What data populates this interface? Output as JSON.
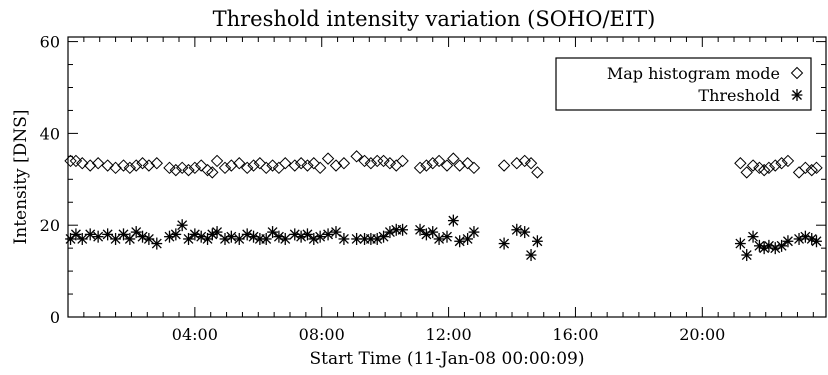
{
  "chart_data": {
    "type": "scatter",
    "title": "Threshold intensity variation (SOHO/EIT)",
    "xlabel": "Start Time (11-Jan-08 00:00:09)",
    "ylabel": "Intensity [DNS]",
    "x_unit": "hours",
    "xlim": [
      0,
      23.9
    ],
    "ylim": [
      0,
      61
    ],
    "xticks": [
      {
        "value": 4,
        "label": "04:00"
      },
      {
        "value": 8,
        "label": "08:00"
      },
      {
        "value": 12,
        "label": "12:00"
      },
      {
        "value": 16,
        "label": "16:00"
      },
      {
        "value": 20,
        "label": "20:00"
      }
    ],
    "yticks": [
      {
        "value": 0,
        "label": "0"
      },
      {
        "value": 20,
        "label": "20"
      },
      {
        "value": 40,
        "label": "40"
      },
      {
        "value": 60,
        "label": "60"
      }
    ],
    "grid": false,
    "legend_position": "top-right",
    "series": [
      {
        "name": "Map histogram mode",
        "marker": "diamond",
        "points": [
          [
            0.08,
            34
          ],
          [
            0.25,
            34
          ],
          [
            0.45,
            33.5
          ],
          [
            0.7,
            33
          ],
          [
            0.95,
            33.5
          ],
          [
            1.25,
            33
          ],
          [
            1.5,
            32.5
          ],
          [
            1.75,
            33
          ],
          [
            1.95,
            32.5
          ],
          [
            2.15,
            33
          ],
          [
            2.35,
            33.5
          ],
          [
            2.55,
            33
          ],
          [
            2.8,
            33.5
          ],
          [
            3.2,
            32.5
          ],
          [
            3.4,
            32
          ],
          [
            3.6,
            32.5
          ],
          [
            3.8,
            32
          ],
          [
            4.0,
            32.5
          ],
          [
            4.2,
            33
          ],
          [
            4.4,
            32
          ],
          [
            4.55,
            31.5
          ],
          [
            4.7,
            34
          ],
          [
            4.95,
            32.5
          ],
          [
            5.15,
            33
          ],
          [
            5.4,
            33.5
          ],
          [
            5.65,
            32.5
          ],
          [
            5.85,
            33
          ],
          [
            6.05,
            33.5
          ],
          [
            6.25,
            32.5
          ],
          [
            6.45,
            33
          ],
          [
            6.65,
            32.5
          ],
          [
            6.85,
            33.5
          ],
          [
            7.15,
            33
          ],
          [
            7.35,
            33.5
          ],
          [
            7.55,
            33
          ],
          [
            7.75,
            33.5
          ],
          [
            7.95,
            32.5
          ],
          [
            8.2,
            34.5
          ],
          [
            8.45,
            33
          ],
          [
            8.7,
            33.5
          ],
          [
            9.1,
            35
          ],
          [
            9.35,
            34
          ],
          [
            9.55,
            33.5
          ],
          [
            9.75,
            34
          ],
          [
            9.95,
            34
          ],
          [
            10.15,
            33.5
          ],
          [
            10.35,
            33
          ],
          [
            10.55,
            34
          ],
          [
            11.1,
            32.5
          ],
          [
            11.3,
            33
          ],
          [
            11.5,
            33.5
          ],
          [
            11.7,
            34
          ],
          [
            11.95,
            33
          ],
          [
            12.15,
            34.5
          ],
          [
            12.35,
            33
          ],
          [
            12.6,
            33.5
          ],
          [
            12.8,
            32.5
          ],
          [
            13.75,
            33
          ],
          [
            14.15,
            33.5
          ],
          [
            14.4,
            34
          ],
          [
            14.6,
            33.5
          ],
          [
            14.8,
            31.5
          ],
          [
            21.2,
            33.5
          ],
          [
            21.4,
            31.5
          ],
          [
            21.6,
            33
          ],
          [
            21.8,
            32.5
          ],
          [
            21.95,
            32
          ],
          [
            22.1,
            32.5
          ],
          [
            22.3,
            33
          ],
          [
            22.5,
            33.5
          ],
          [
            22.7,
            34
          ],
          [
            23.05,
            31.5
          ],
          [
            23.25,
            32.5
          ],
          [
            23.45,
            32
          ],
          [
            23.6,
            32.5
          ]
        ]
      },
      {
        "name": "Threshold",
        "marker": "asterisk",
        "points": [
          [
            0.08,
            17
          ],
          [
            0.25,
            18
          ],
          [
            0.45,
            17
          ],
          [
            0.7,
            18
          ],
          [
            0.95,
            17.5
          ],
          [
            1.25,
            18
          ],
          [
            1.5,
            17
          ],
          [
            1.75,
            18
          ],
          [
            1.95,
            17
          ],
          [
            2.15,
            18.5
          ],
          [
            2.35,
            17.5
          ],
          [
            2.55,
            17
          ],
          [
            2.8,
            16
          ],
          [
            3.2,
            17.5
          ],
          [
            3.4,
            18
          ],
          [
            3.6,
            20
          ],
          [
            3.8,
            17
          ],
          [
            4.0,
            18
          ],
          [
            4.2,
            17.5
          ],
          [
            4.4,
            17
          ],
          [
            4.55,
            18
          ],
          [
            4.7,
            18.5
          ],
          [
            4.95,
            17
          ],
          [
            5.15,
            17.5
          ],
          [
            5.4,
            17
          ],
          [
            5.65,
            18
          ],
          [
            5.85,
            17.5
          ],
          [
            6.05,
            17
          ],
          [
            6.25,
            17
          ],
          [
            6.45,
            18.5
          ],
          [
            6.65,
            17.5
          ],
          [
            6.85,
            17
          ],
          [
            7.15,
            18
          ],
          [
            7.35,
            17.5
          ],
          [
            7.55,
            18
          ],
          [
            7.75,
            17
          ],
          [
            7.95,
            17.5
          ],
          [
            8.2,
            18
          ],
          [
            8.45,
            18.5
          ],
          [
            8.7,
            17
          ],
          [
            9.1,
            17
          ],
          [
            9.35,
            17
          ],
          [
            9.55,
            17
          ],
          [
            9.75,
            17
          ],
          [
            9.95,
            17.5
          ],
          [
            10.15,
            18.5
          ],
          [
            10.35,
            19
          ],
          [
            10.55,
            19
          ],
          [
            11.1,
            19
          ],
          [
            11.3,
            18
          ],
          [
            11.5,
            18.5
          ],
          [
            11.7,
            17
          ],
          [
            11.95,
            17.5
          ],
          [
            12.15,
            21
          ],
          [
            12.35,
            16.5
          ],
          [
            12.6,
            17
          ],
          [
            12.8,
            18.5
          ],
          [
            13.75,
            16
          ],
          [
            14.15,
            19
          ],
          [
            14.4,
            18.5
          ],
          [
            14.6,
            13.5
          ],
          [
            14.8,
            16.5
          ],
          [
            21.2,
            16
          ],
          [
            21.4,
            13.5
          ],
          [
            21.6,
            17.5
          ],
          [
            21.8,
            15.5
          ],
          [
            21.95,
            15
          ],
          [
            22.1,
            15.5
          ],
          [
            22.3,
            15
          ],
          [
            22.5,
            15.5
          ],
          [
            22.7,
            16.5
          ],
          [
            23.05,
            17
          ],
          [
            23.25,
            17.5
          ],
          [
            23.45,
            17
          ],
          [
            23.6,
            16.5
          ]
        ]
      }
    ]
  }
}
